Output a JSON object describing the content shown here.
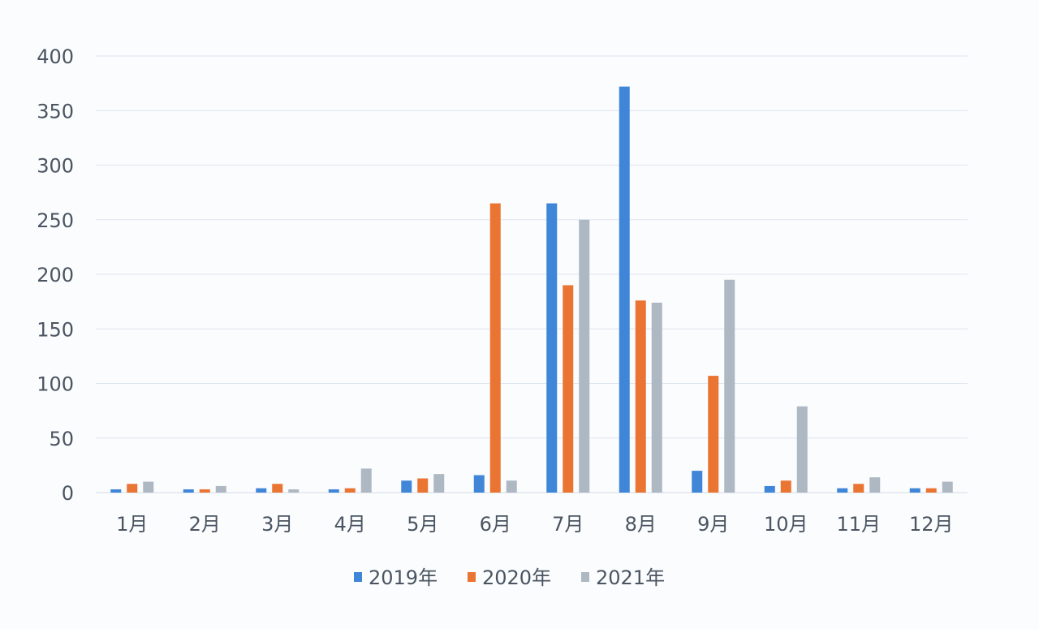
{
  "chart_data": {
    "type": "bar",
    "categories": [
      "1月",
      "2月",
      "3月",
      "4月",
      "5月",
      "6月",
      "7月",
      "8月",
      "9月",
      "10月",
      "11月",
      "12月"
    ],
    "series": [
      {
        "name": "2019年",
        "color": "#3f86d8",
        "values": [
          3,
          3,
          4,
          3,
          11,
          16,
          265,
          372,
          20,
          6,
          4,
          4
        ]
      },
      {
        "name": "2020年",
        "color": "#ea7432",
        "values": [
          8,
          3,
          8,
          4,
          13,
          265,
          190,
          176,
          107,
          11,
          8,
          4
        ]
      },
      {
        "name": "2021年",
        "color": "#aeb8c2",
        "values": [
          10,
          6,
          3,
          22,
          17,
          11,
          250,
          174,
          195,
          79,
          14,
          10
        ]
      }
    ],
    "yticks": [
      "0",
      "50",
      "100",
      "150",
      "200",
      "250",
      "300",
      "350",
      "400"
    ],
    "ylim": [
      0,
      400
    ],
    "grid": true,
    "legend_position": "bottom-center",
    "xlabel": "",
    "ylabel": ""
  }
}
